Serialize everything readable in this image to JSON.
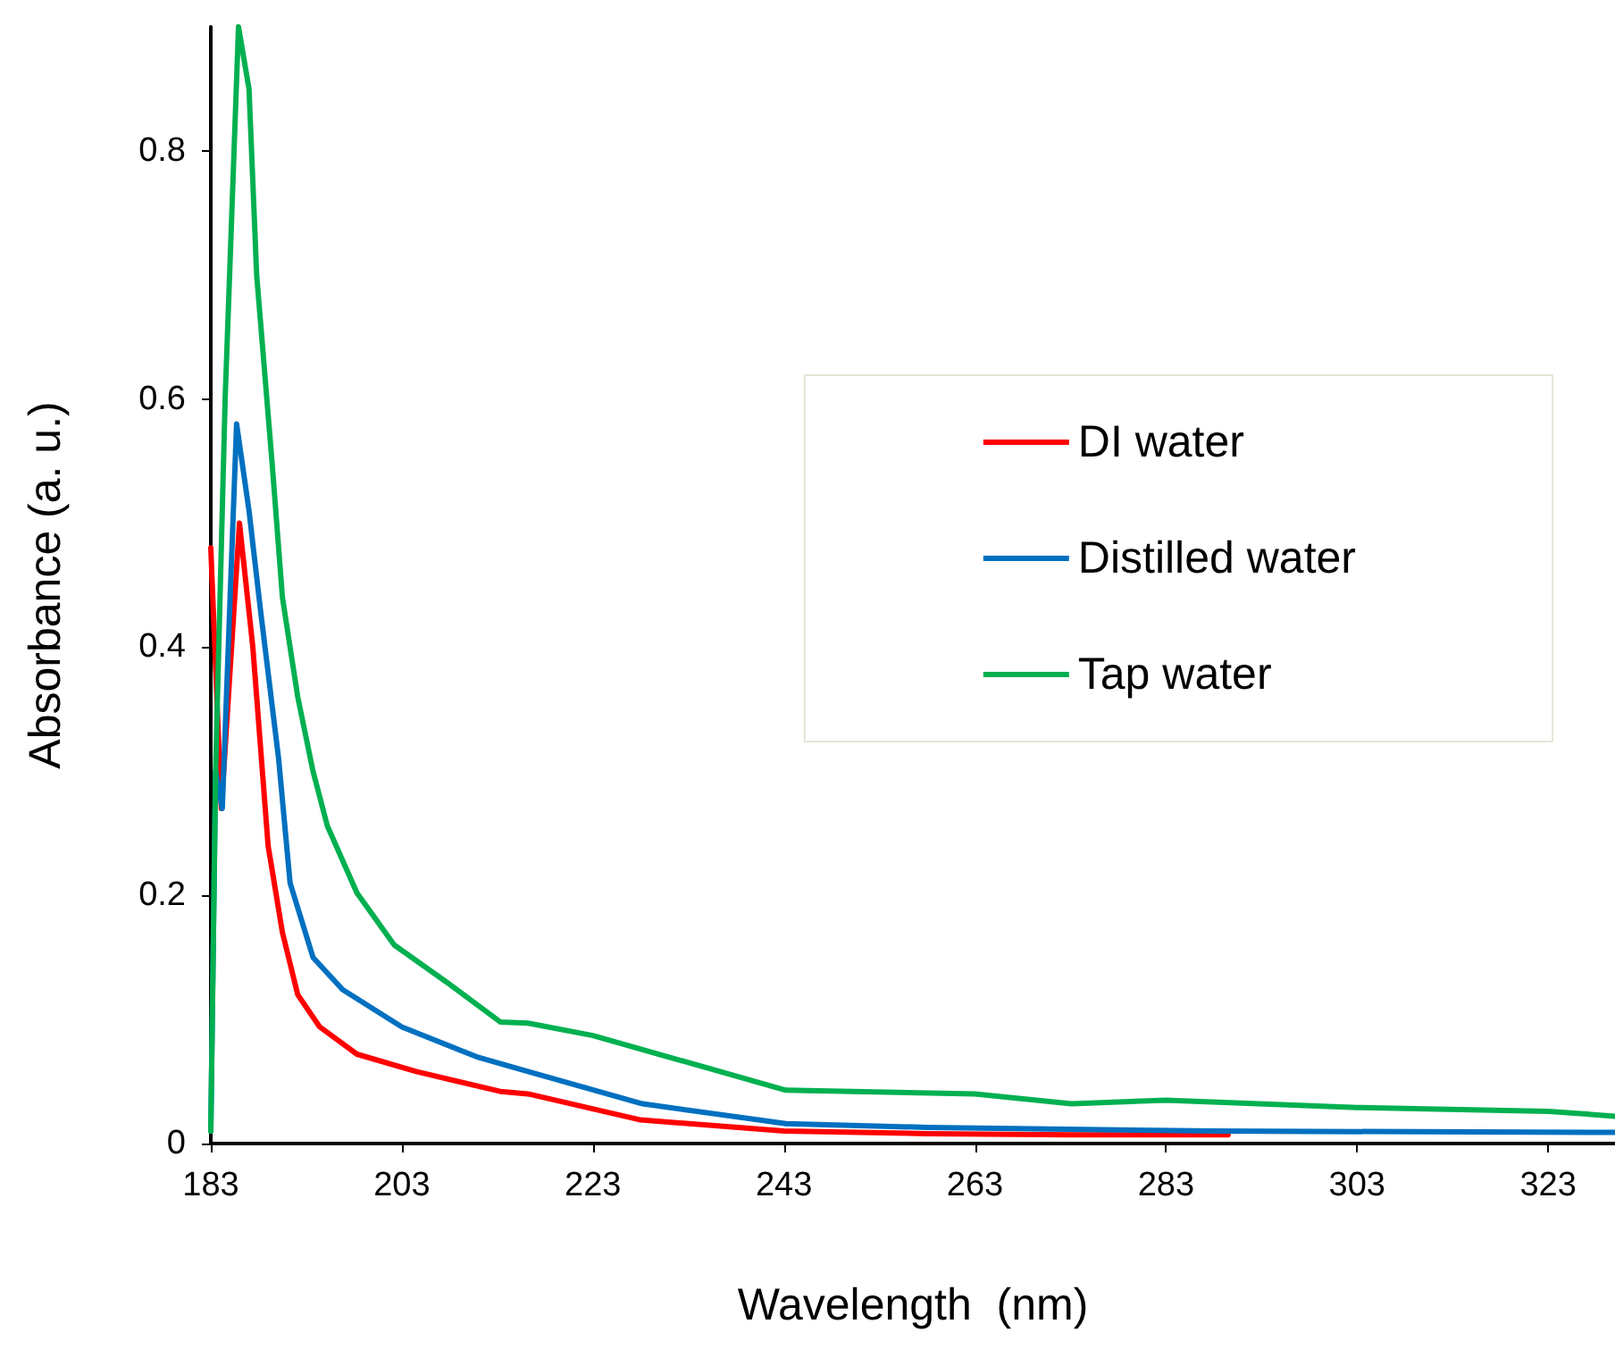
{
  "chart_data": {
    "type": "line",
    "xlabel": "Wavelength  (nm)",
    "ylabel": "Absorbance (a. u.)",
    "xlim": [
      183,
      330
    ],
    "xticks": [
      183,
      203,
      223,
      243,
      263,
      283,
      303,
      323
    ],
    "ylim": [
      0,
      0.9
    ],
    "yticks": [
      0,
      0.2,
      0.4,
      0.6,
      0.8
    ],
    "grid": false,
    "legend": "top right",
    "marker": "none",
    "line_style": "solid",
    "series": [
      {
        "name": "DI water",
        "color": "#ff0000",
        "x": [
          183,
          184.1,
          186,
          187.4,
          189,
          190.5,
          192.1,
          194.4,
          198.3,
          204.5,
          213.3,
          216.2,
          228,
          243,
          258,
          273,
          289.5
        ],
        "values": [
          0.48,
          0.27,
          0.5,
          0.4,
          0.24,
          0.17,
          0.12,
          0.094,
          0.072,
          0.058,
          0.042,
          0.04,
          0.019,
          0.01,
          0.008,
          0.007,
          0.007
        ]
      },
      {
        "name": "Distilled water",
        "color": "#0070c0",
        "x": [
          183,
          183.5,
          184.2,
          185.7,
          187,
          188.2,
          190.1,
          191.3,
          193.7,
          196.8,
          203,
          210.8,
          216.2,
          228.2,
          243.2,
          258,
          288,
          330
        ],
        "values": [
          0.01,
          0.3,
          0.27,
          0.58,
          0.51,
          0.43,
          0.31,
          0.21,
          0.15,
          0.124,
          0.094,
          0.07,
          0.058,
          0.032,
          0.016,
          0.013,
          0.01,
          0.009
        ]
      },
      {
        "name": "Tap water",
        "color": "#00b050",
        "x": [
          183,
          183.5,
          184.5,
          185.9,
          187,
          187.8,
          189.4,
          190.5,
          192.1,
          193.7,
          195.2,
          198.3,
          202.2,
          207.7,
          213.3,
          216.2,
          223,
          243.2,
          263,
          273.1,
          283,
          303,
          323,
          330
        ],
        "values": [
          0.01,
          0.3,
          0.6,
          0.9,
          0.85,
          0.7,
          0.55,
          0.44,
          0.36,
          0.3,
          0.256,
          0.202,
          0.16,
          0.13,
          0.098,
          0.097,
          0.087,
          0.043,
          0.04,
          0.032,
          0.035,
          0.029,
          0.026,
          0.022
        ]
      }
    ]
  }
}
